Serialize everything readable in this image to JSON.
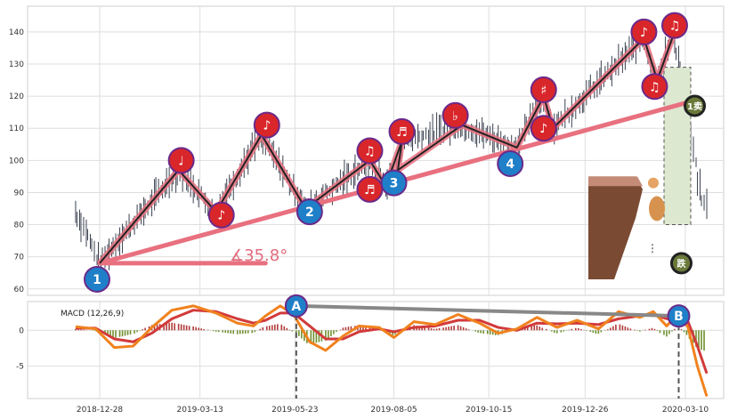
{
  "colors": {
    "trend": "#e8707f",
    "zigzag": "#222222",
    "blue": "#1f7fc8",
    "red": "#d9262a",
    "ring": "#6a2a8a",
    "dif": "#f0821e",
    "dea": "#d23a3a",
    "hist_pos": "#b23a3a",
    "hist_neg": "#6f8f2e",
    "link": "#888888",
    "box": "#dde8d0",
    "cliff": "#7a4a33",
    "candle": "#3a4150"
  },
  "chart_data": {
    "type": "line",
    "price_panel": {
      "ylim": [
        58,
        148
      ],
      "yticks": [
        60,
        70,
        80,
        90,
        100,
        110,
        120,
        130,
        140
      ],
      "trendline": {
        "start": [
          "2018-12-28",
          68
        ],
        "end": [
          "2020-03-20",
          119
        ]
      },
      "angle_label": "∡35.8°",
      "zigzag": [
        [
          "2018-12-28",
          68
        ],
        [
          "2019-02-25",
          97
        ],
        [
          "2019-03-25",
          84
        ],
        [
          "2019-04-28",
          108
        ],
        [
          "2019-05-31",
          85
        ],
        [
          "2019-07-18",
          100
        ],
        [
          "2019-07-30",
          92
        ],
        [
          "2019-08-11",
          106
        ],
        [
          "2019-08-08",
          97
        ],
        [
          "2019-09-25",
          111
        ],
        [
          "2019-11-05",
          104
        ],
        [
          "2019-11-25",
          120
        ],
        [
          "2019-12-02",
          110
        ],
        [
          "2020-02-08",
          138
        ],
        [
          "2020-02-18",
          125
        ],
        [
          "2020-03-01",
          139
        ]
      ],
      "markers": [
        {
          "label": "1",
          "kind": "blue",
          "x": "2018-12-26",
          "y": 63
        },
        {
          "label": "♩",
          "kind": "red",
          "x": "2019-02-27",
          "y": 100
        },
        {
          "label": "♪",
          "kind": "red",
          "x": "2019-03-29",
          "y": 83
        },
        {
          "label": "♪",
          "kind": "red",
          "x": "2019-05-02",
          "y": 111
        },
        {
          "label": "2",
          "kind": "blue",
          "x": "2019-06-03",
          "y": 84
        },
        {
          "label": "♫",
          "kind": "red",
          "x": "2019-07-18",
          "y": 103
        },
        {
          "label": "♬",
          "kind": "red",
          "x": "2019-07-18",
          "y": 91
        },
        {
          "label": "3",
          "kind": "blue",
          "x": "2019-08-05",
          "y": 93
        },
        {
          "label": "♬",
          "kind": "red",
          "x": "2019-08-11",
          "y": 109
        },
        {
          "label": "♭",
          "kind": "red",
          "x": "2019-09-20",
          "y": 114
        },
        {
          "label": "4",
          "kind": "blue",
          "x": "2019-10-31",
          "y": 99
        },
        {
          "label": "♯",
          "kind": "red",
          "x": "2019-11-25",
          "y": 122
        },
        {
          "label": "♪",
          "kind": "red",
          "x": "2019-11-25",
          "y": 110
        },
        {
          "label": "♪",
          "kind": "red",
          "x": "2020-02-08",
          "y": 140
        },
        {
          "label": "♫",
          "kind": "red",
          "x": "2020-02-16",
          "y": 123
        },
        {
          "label": "♫",
          "kind": "red",
          "x": "2020-03-02",
          "y": 142
        }
      ],
      "annotation_badges": [
        {
          "text": "1卖",
          "x": "2020-03-17",
          "y": 117
        },
        {
          "text": "跌",
          "x": "2020-03-07",
          "y": 68
        }
      ]
    },
    "macd_panel": {
      "label": "MACD (12,26,9)",
      "ylim": [
        -9.5,
        4
      ],
      "yticks": [
        -5,
        0
      ],
      "divergence": {
        "a": {
          "label": "A",
          "x": "2019-05-24",
          "y": 3.4
        },
        "b": {
          "label": "B",
          "x": "2020-03-05",
          "y": 2.0
        }
      },
      "dif": [
        [
          "2018-12-10",
          0.5
        ],
        [
          "2018-12-25",
          0.2
        ],
        [
          "2019-01-08",
          -2.4
        ],
        [
          "2019-01-22",
          -2.2
        ],
        [
          "2019-02-05",
          0.4
        ],
        [
          "2019-02-20",
          2.8
        ],
        [
          "2019-03-08",
          3.4
        ],
        [
          "2019-03-25",
          2.4
        ],
        [
          "2019-04-10",
          1.0
        ],
        [
          "2019-04-22",
          0.6
        ],
        [
          "2019-05-01",
          2.0
        ],
        [
          "2019-05-12",
          3.4
        ],
        [
          "2019-05-22",
          2.2
        ],
        [
          "2019-06-03",
          -1.6
        ],
        [
          "2019-06-15",
          -2.8
        ],
        [
          "2019-06-28",
          -0.8
        ],
        [
          "2019-07-10",
          0.6
        ],
        [
          "2019-07-25",
          0.4
        ],
        [
          "2019-08-05",
          -1.0
        ],
        [
          "2019-08-20",
          1.2
        ],
        [
          "2019-09-05",
          0.8
        ],
        [
          "2019-09-22",
          2.2
        ],
        [
          "2019-10-08",
          1.0
        ],
        [
          "2019-10-22",
          -0.4
        ],
        [
          "2019-11-05",
          0.2
        ],
        [
          "2019-11-20",
          1.8
        ],
        [
          "2019-12-05",
          0.4
        ],
        [
          "2019-12-20",
          1.4
        ],
        [
          "2020-01-05",
          0.2
        ],
        [
          "2020-01-20",
          2.6
        ],
        [
          "2020-02-05",
          1.8
        ],
        [
          "2020-02-15",
          2.6
        ],
        [
          "2020-02-25",
          0.6
        ],
        [
          "2020-03-05",
          2.4
        ],
        [
          "2020-03-12",
          0.4
        ],
        [
          "2020-03-19",
          -5.0
        ],
        [
          "2020-03-26",
          -9.2
        ]
      ],
      "dea": [
        [
          "2018-12-10",
          0.3
        ],
        [
          "2018-12-25",
          0.3
        ],
        [
          "2019-01-08",
          -1.2
        ],
        [
          "2019-01-22",
          -1.6
        ],
        [
          "2019-02-05",
          -0.4
        ],
        [
          "2019-02-20",
          1.6
        ],
        [
          "2019-03-08",
          2.8
        ],
        [
          "2019-03-25",
          2.6
        ],
        [
          "2019-04-10",
          1.6
        ],
        [
          "2019-04-22",
          1.0
        ],
        [
          "2019-05-01",
          1.4
        ],
        [
          "2019-05-12",
          2.4
        ],
        [
          "2019-05-22",
          2.4
        ],
        [
          "2019-06-03",
          0.6
        ],
        [
          "2019-06-15",
          -1.2
        ],
        [
          "2019-06-28",
          -1.2
        ],
        [
          "2019-07-10",
          -0.2
        ],
        [
          "2019-07-25",
          0.2
        ],
        [
          "2019-08-05",
          -0.2
        ],
        [
          "2019-08-20",
          0.4
        ],
        [
          "2019-09-05",
          0.6
        ],
        [
          "2019-09-22",
          1.4
        ],
        [
          "2019-10-08",
          1.4
        ],
        [
          "2019-10-22",
          0.4
        ],
        [
          "2019-11-05",
          0.0
        ],
        [
          "2019-11-20",
          1.0
        ],
        [
          "2019-12-05",
          0.9
        ],
        [
          "2019-12-20",
          1.0
        ],
        [
          "2020-01-05",
          0.8
        ],
        [
          "2020-01-20",
          1.6
        ],
        [
          "2020-02-05",
          2.0
        ],
        [
          "2020-02-15",
          2.2
        ],
        [
          "2020-02-25",
          1.6
        ],
        [
          "2020-03-05",
          1.8
        ],
        [
          "2020-03-12",
          1.2
        ],
        [
          "2020-03-19",
          -2.2
        ],
        [
          "2020-03-26",
          -6.0
        ]
      ]
    },
    "xticks": [
      "2018-12-28",
      "2019-03-13",
      "2019-05-23",
      "2019-08-05",
      "2019-10-15",
      "2019-12-26",
      "2020-03-10"
    ]
  }
}
